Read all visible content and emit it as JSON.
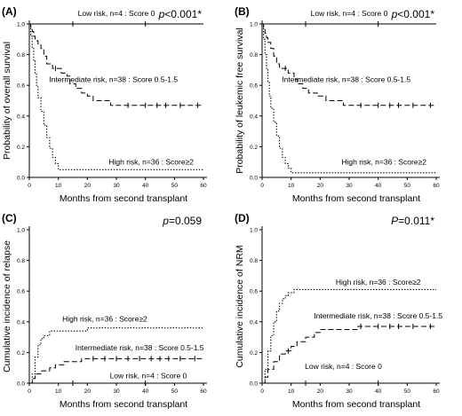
{
  "chart_data": [
    {
      "type": "line",
      "panel_label": "(A)",
      "p_prefix": "p",
      "p_value": "<0.001*",
      "xlabel": "Months from second transplant",
      "ylabel": "Probability of overall survival",
      "xlim": [
        0,
        60
      ],
      "ylim": [
        0,
        1
      ],
      "xticks": [
        0,
        10,
        20,
        30,
        40,
        50,
        60
      ],
      "yticks": [
        0.0,
        0.2,
        0.4,
        0.6,
        0.8,
        1.0
      ],
      "yticklabels": [
        "0.0",
        "0.2",
        "0.4",
        "0.6",
        "0.8",
        "1.0"
      ],
      "series": [
        {
          "label": "Low risk, n=4 : Score 0",
          "style": "solid",
          "points": [
            [
              0,
              1
            ],
            [
              60,
              1
            ]
          ],
          "censor": [
            15,
            40
          ],
          "label_x": 30,
          "label_y": 1.07
        },
        {
          "label": "Intermediate risk, n=38 : Score 0.5-1.5",
          "style": "dashed",
          "points": [
            [
              0,
              1
            ],
            [
              0.5,
              0.97
            ],
            [
              1,
              0.95
            ],
            [
              1.5,
              0.92
            ],
            [
              2,
              0.89
            ],
            [
              3,
              0.87
            ],
            [
              4,
              0.84
            ],
            [
              5,
              0.79
            ],
            [
              6,
              0.74
            ],
            [
              8,
              0.71
            ],
            [
              11,
              0.68
            ],
            [
              13,
              0.66
            ],
            [
              14,
              0.61
            ],
            [
              16,
              0.58
            ],
            [
              18,
              0.55
            ],
            [
              20,
              0.53
            ],
            [
              22,
              0.5
            ],
            [
              28,
              0.47
            ],
            [
              60,
              0.47
            ]
          ],
          "censor": [
            9,
            34,
            40,
            44,
            47,
            52,
            58
          ],
          "label_x": 29,
          "label_y": 0.64
        },
        {
          "label": "High risk, n=36 : Score≥2",
          "style": "dotted",
          "points": [
            [
              0,
              1
            ],
            [
              0.5,
              0.92
            ],
            [
              1,
              0.84
            ],
            [
              1.5,
              0.76
            ],
            [
              2,
              0.68
            ],
            [
              2.5,
              0.6
            ],
            [
              3,
              0.52
            ],
            [
              4,
              0.43
            ],
            [
              5,
              0.34
            ],
            [
              6,
              0.26
            ],
            [
              7,
              0.19
            ],
            [
              8,
              0.13
            ],
            [
              9,
              0.09
            ],
            [
              10,
              0.05
            ],
            [
              60,
              0.05
            ]
          ],
          "censor": [],
          "label_x": 42,
          "label_y": 0.1
        }
      ]
    },
    {
      "type": "line",
      "panel_label": "(B)",
      "p_prefix": "p",
      "p_value": "<0.001*",
      "xlabel": "Months from second transplant",
      "ylabel": "Probability of leukemic free survival",
      "xlim": [
        0,
        60
      ],
      "ylim": [
        0,
        1
      ],
      "xticks": [
        0,
        10,
        20,
        30,
        40,
        50,
        60
      ],
      "yticks": [
        0.0,
        0.2,
        0.4,
        0.6,
        0.8,
        1.0
      ],
      "yticklabels": [
        "0.0",
        "0.2",
        "0.4",
        "0.6",
        "0.8",
        "1.0"
      ],
      "series": [
        {
          "label": "Low risk, n=4 : Score 0",
          "style": "solid",
          "points": [
            [
              0,
              1
            ],
            [
              60,
              1
            ]
          ],
          "censor": [
            15,
            40
          ],
          "label_x": 30,
          "label_y": 1.07
        },
        {
          "label": "Intermediate risk, n=38 : Score 0.5-1.5",
          "style": "dashed",
          "points": [
            [
              0,
              1
            ],
            [
              0.5,
              0.97
            ],
            [
              1,
              0.94
            ],
            [
              1.5,
              0.91
            ],
            [
              2,
              0.88
            ],
            [
              3,
              0.84
            ],
            [
              4,
              0.79
            ],
            [
              5,
              0.74
            ],
            [
              6,
              0.71
            ],
            [
              9,
              0.68
            ],
            [
              11,
              0.64
            ],
            [
              12,
              0.61
            ],
            [
              14,
              0.58
            ],
            [
              16,
              0.55
            ],
            [
              19,
              0.53
            ],
            [
              22,
              0.5
            ],
            [
              28,
              0.47
            ],
            [
              60,
              0.47
            ]
          ],
          "censor": [
            8,
            34,
            40,
            44,
            47,
            52,
            58
          ],
          "label_x": 29,
          "label_y": 0.64
        },
        {
          "label": "High risk, n=36 : Score≥2",
          "style": "dotted",
          "points": [
            [
              0,
              1
            ],
            [
              0.5,
              0.9
            ],
            [
              1,
              0.8
            ],
            [
              1.5,
              0.71
            ],
            [
              2,
              0.62
            ],
            [
              2.5,
              0.53
            ],
            [
              3,
              0.45
            ],
            [
              4,
              0.36
            ],
            [
              5,
              0.27
            ],
            [
              6,
              0.19
            ],
            [
              7,
              0.13
            ],
            [
              8,
              0.09
            ],
            [
              9,
              0.06
            ],
            [
              10,
              0.03
            ],
            [
              60,
              0.03
            ]
          ],
          "censor": [],
          "label_x": 42,
          "label_y": 0.1
        }
      ]
    },
    {
      "type": "line",
      "panel_label": "(C)",
      "p_prefix": "p",
      "p_value": "=0.059",
      "xlabel": "Months from second transplant",
      "ylabel": "Cumulative incidence of relapse",
      "xlim": [
        0,
        60
      ],
      "ylim": [
        0,
        1
      ],
      "xticks": [
        0,
        10,
        20,
        30,
        40,
        50,
        60
      ],
      "yticks": [
        0.0,
        0.2,
        0.4,
        0.6,
        0.8,
        1.0
      ],
      "yticklabels": [
        "0.0",
        "0.2",
        "0.4",
        "0.6",
        "0.8",
        "1.0"
      ],
      "series": [
        {
          "label": "High risk, n=36 : Score≥2",
          "style": "dotted",
          "points": [
            [
              0,
              0
            ],
            [
              1,
              0.06
            ],
            [
              2,
              0.17
            ],
            [
              3,
              0.25
            ],
            [
              4,
              0.29
            ],
            [
              5,
              0.31
            ],
            [
              7,
              0.34
            ],
            [
              20,
              0.36
            ],
            [
              60,
              0.36
            ]
          ],
          "censor": [],
          "label_x": 26,
          "label_y": 0.42
        },
        {
          "label": "Intermediate risk, n=38 : Score 0.5-1.5",
          "style": "dashed",
          "points": [
            [
              0,
              0
            ],
            [
              1,
              0.03
            ],
            [
              2,
              0.06
            ],
            [
              4,
              0.08
            ],
            [
              7,
              0.1
            ],
            [
              9,
              0.12
            ],
            [
              12,
              0.14
            ],
            [
              18,
              0.16
            ],
            [
              60,
              0.16
            ]
          ],
          "censor": [
            22,
            26,
            30,
            34,
            38,
            42,
            45,
            48,
            52,
            57
          ],
          "label_x": 38,
          "label_y": 0.23
        },
        {
          "label": "Low risk, n=4 : Score 0",
          "style": "solid",
          "points": [
            [
              0,
              0
            ],
            [
              60,
              0
            ]
          ],
          "censor": [
            15,
            40
          ],
          "label_x": 41,
          "label_y": 0.05
        }
      ]
    },
    {
      "type": "line",
      "panel_label": "(D)",
      "p_prefix": "P",
      "p_value": "=0.011*",
      "xlabel": "Months from second transplant",
      "ylabel": "Cumulative incidence of NRM",
      "xlim": [
        0,
        60
      ],
      "ylim": [
        0,
        1
      ],
      "xticks": [
        0,
        10,
        20,
        30,
        40,
        50,
        60
      ],
      "yticks": [
        0.0,
        0.2,
        0.4,
        0.6,
        0.8,
        1.0
      ],
      "yticklabels": [
        "0.0",
        "0.2",
        "0.4",
        "0.6",
        "0.8",
        "1.0"
      ],
      "series": [
        {
          "label": "High risk, n=36 : Score≥2",
          "style": "dotted",
          "points": [
            [
              0,
              0
            ],
            [
              1,
              0.09
            ],
            [
              2,
              0.21
            ],
            [
              3,
              0.31
            ],
            [
              4,
              0.4
            ],
            [
              5,
              0.47
            ],
            [
              6,
              0.52
            ],
            [
              7,
              0.55
            ],
            [
              8,
              0.57
            ],
            [
              9,
              0.59
            ],
            [
              11,
              0.61
            ],
            [
              60,
              0.61
            ]
          ],
          "censor": [],
          "label_x": 40,
          "label_y": 0.66
        },
        {
          "label": "Intermediate risk, n=38 : Score 0.5-1.5",
          "style": "dashed",
          "points": [
            [
              0,
              0
            ],
            [
              1,
              0.04
            ],
            [
              2,
              0.09
            ],
            [
              4,
              0.14
            ],
            [
              6,
              0.19
            ],
            [
              8,
              0.21
            ],
            [
              10,
              0.24
            ],
            [
              12,
              0.27
            ],
            [
              15,
              0.3
            ],
            [
              18,
              0.33
            ],
            [
              20,
              0.35
            ],
            [
              33,
              0.37
            ],
            [
              60,
              0.37
            ]
          ],
          "censor": [
            9,
            34,
            40,
            44,
            47,
            52,
            58
          ],
          "label_x": 40,
          "label_y": 0.44
        },
        {
          "label": "Low risk, n=4 : Score 0",
          "style": "solid",
          "points": [
            [
              0,
              0
            ],
            [
              60,
              0
            ]
          ],
          "censor": [
            15,
            40
          ],
          "label_x": 28,
          "label_y": 0.11
        }
      ]
    }
  ]
}
